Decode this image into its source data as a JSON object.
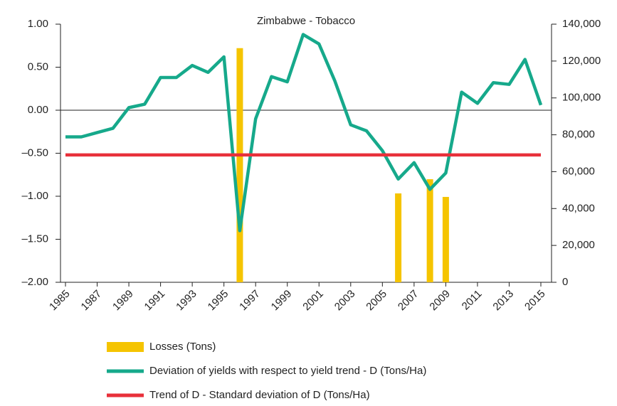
{
  "chart_data": {
    "type": "bar-line",
    "title": "Zimbabwe - Tobacco",
    "x": [
      1985,
      1986,
      1987,
      1988,
      1989,
      1990,
      1991,
      1992,
      1993,
      1994,
      1995,
      1996,
      1997,
      1998,
      1999,
      2000,
      2001,
      2002,
      2003,
      2004,
      2005,
      2006,
      2007,
      2008,
      2009,
      2010,
      2011,
      2012,
      2013,
      2014,
      2015
    ],
    "xlim": [
      1985,
      2015
    ],
    "xticks": [
      1985,
      1987,
      1989,
      1991,
      1993,
      1995,
      1997,
      1999,
      2001,
      2003,
      2005,
      2007,
      2009,
      2011,
      2013,
      2015
    ],
    "ylim": [
      -2,
      1
    ],
    "yticks": [
      {
        "value": -2,
        "label": "–2.00"
      },
      {
        "value": -1.5,
        "label": "–1.50"
      },
      {
        "value": -1,
        "label": "–1.00"
      },
      {
        "value": -0.5,
        "label": "–0.50"
      },
      {
        "value": 0,
        "label": "0.00"
      },
      {
        "value": 0.5,
        "label": "0.50"
      },
      {
        "value": 1,
        "label": "1.00"
      }
    ],
    "y2lim": [
      0,
      140000
    ],
    "y2ticks": [
      0,
      {
        "value": 20000,
        "label": "20,000"
      },
      {
        "value": 40000,
        "label": "40,000"
      },
      {
        "value": 60000,
        "label": "60,000"
      },
      {
        "value": 80000,
        "label": "80,000"
      },
      {
        "value": 100000,
        "label": "100,000"
      },
      {
        "value": 120000,
        "label": "120,000"
      },
      {
        "value": 140000,
        "label": "140,000"
      }
    ],
    "series": [
      {
        "name": "Losses (Tons)",
        "type": "bar",
        "axis": "y2",
        "color": "#f5c400",
        "values": [
          null,
          null,
          null,
          null,
          null,
          null,
          null,
          null,
          null,
          null,
          null,
          127000,
          null,
          null,
          null,
          null,
          null,
          null,
          null,
          null,
          null,
          48200,
          null,
          55900,
          46300,
          null,
          null,
          null,
          null,
          null,
          null
        ]
      },
      {
        "name": "Deviation of yields with respect to yield trend - D (Tons/Ha)",
        "type": "line",
        "axis": "y",
        "color": "#16a98b",
        "values": [
          -0.31,
          -0.31,
          -0.26,
          -0.21,
          0.03,
          0.07,
          0.38,
          0.38,
          0.52,
          0.44,
          0.62,
          -1.4,
          -0.1,
          0.39,
          0.33,
          0.88,
          0.77,
          0.34,
          -0.17,
          -0.24,
          -0.47,
          -0.8,
          -0.61,
          -0.92,
          -0.73,
          0.21,
          0.08,
          0.32,
          0.3,
          0.59,
          0.06
        ]
      },
      {
        "name": "Trend of D - Standard deviation of D (Tons/Ha)",
        "type": "line",
        "axis": "y",
        "color": "#e8303a",
        "values": [
          -0.52,
          -0.52,
          -0.52,
          -0.52,
          -0.52,
          -0.52,
          -0.52,
          -0.52,
          -0.52,
          -0.52,
          -0.52,
          -0.52,
          -0.52,
          -0.52,
          -0.52,
          -0.52,
          -0.52,
          -0.52,
          -0.52,
          -0.52,
          -0.52,
          -0.52,
          -0.52,
          -0.52,
          -0.52,
          -0.52,
          -0.52,
          -0.52,
          -0.52,
          -0.52,
          -0.52
        ]
      }
    ]
  }
}
